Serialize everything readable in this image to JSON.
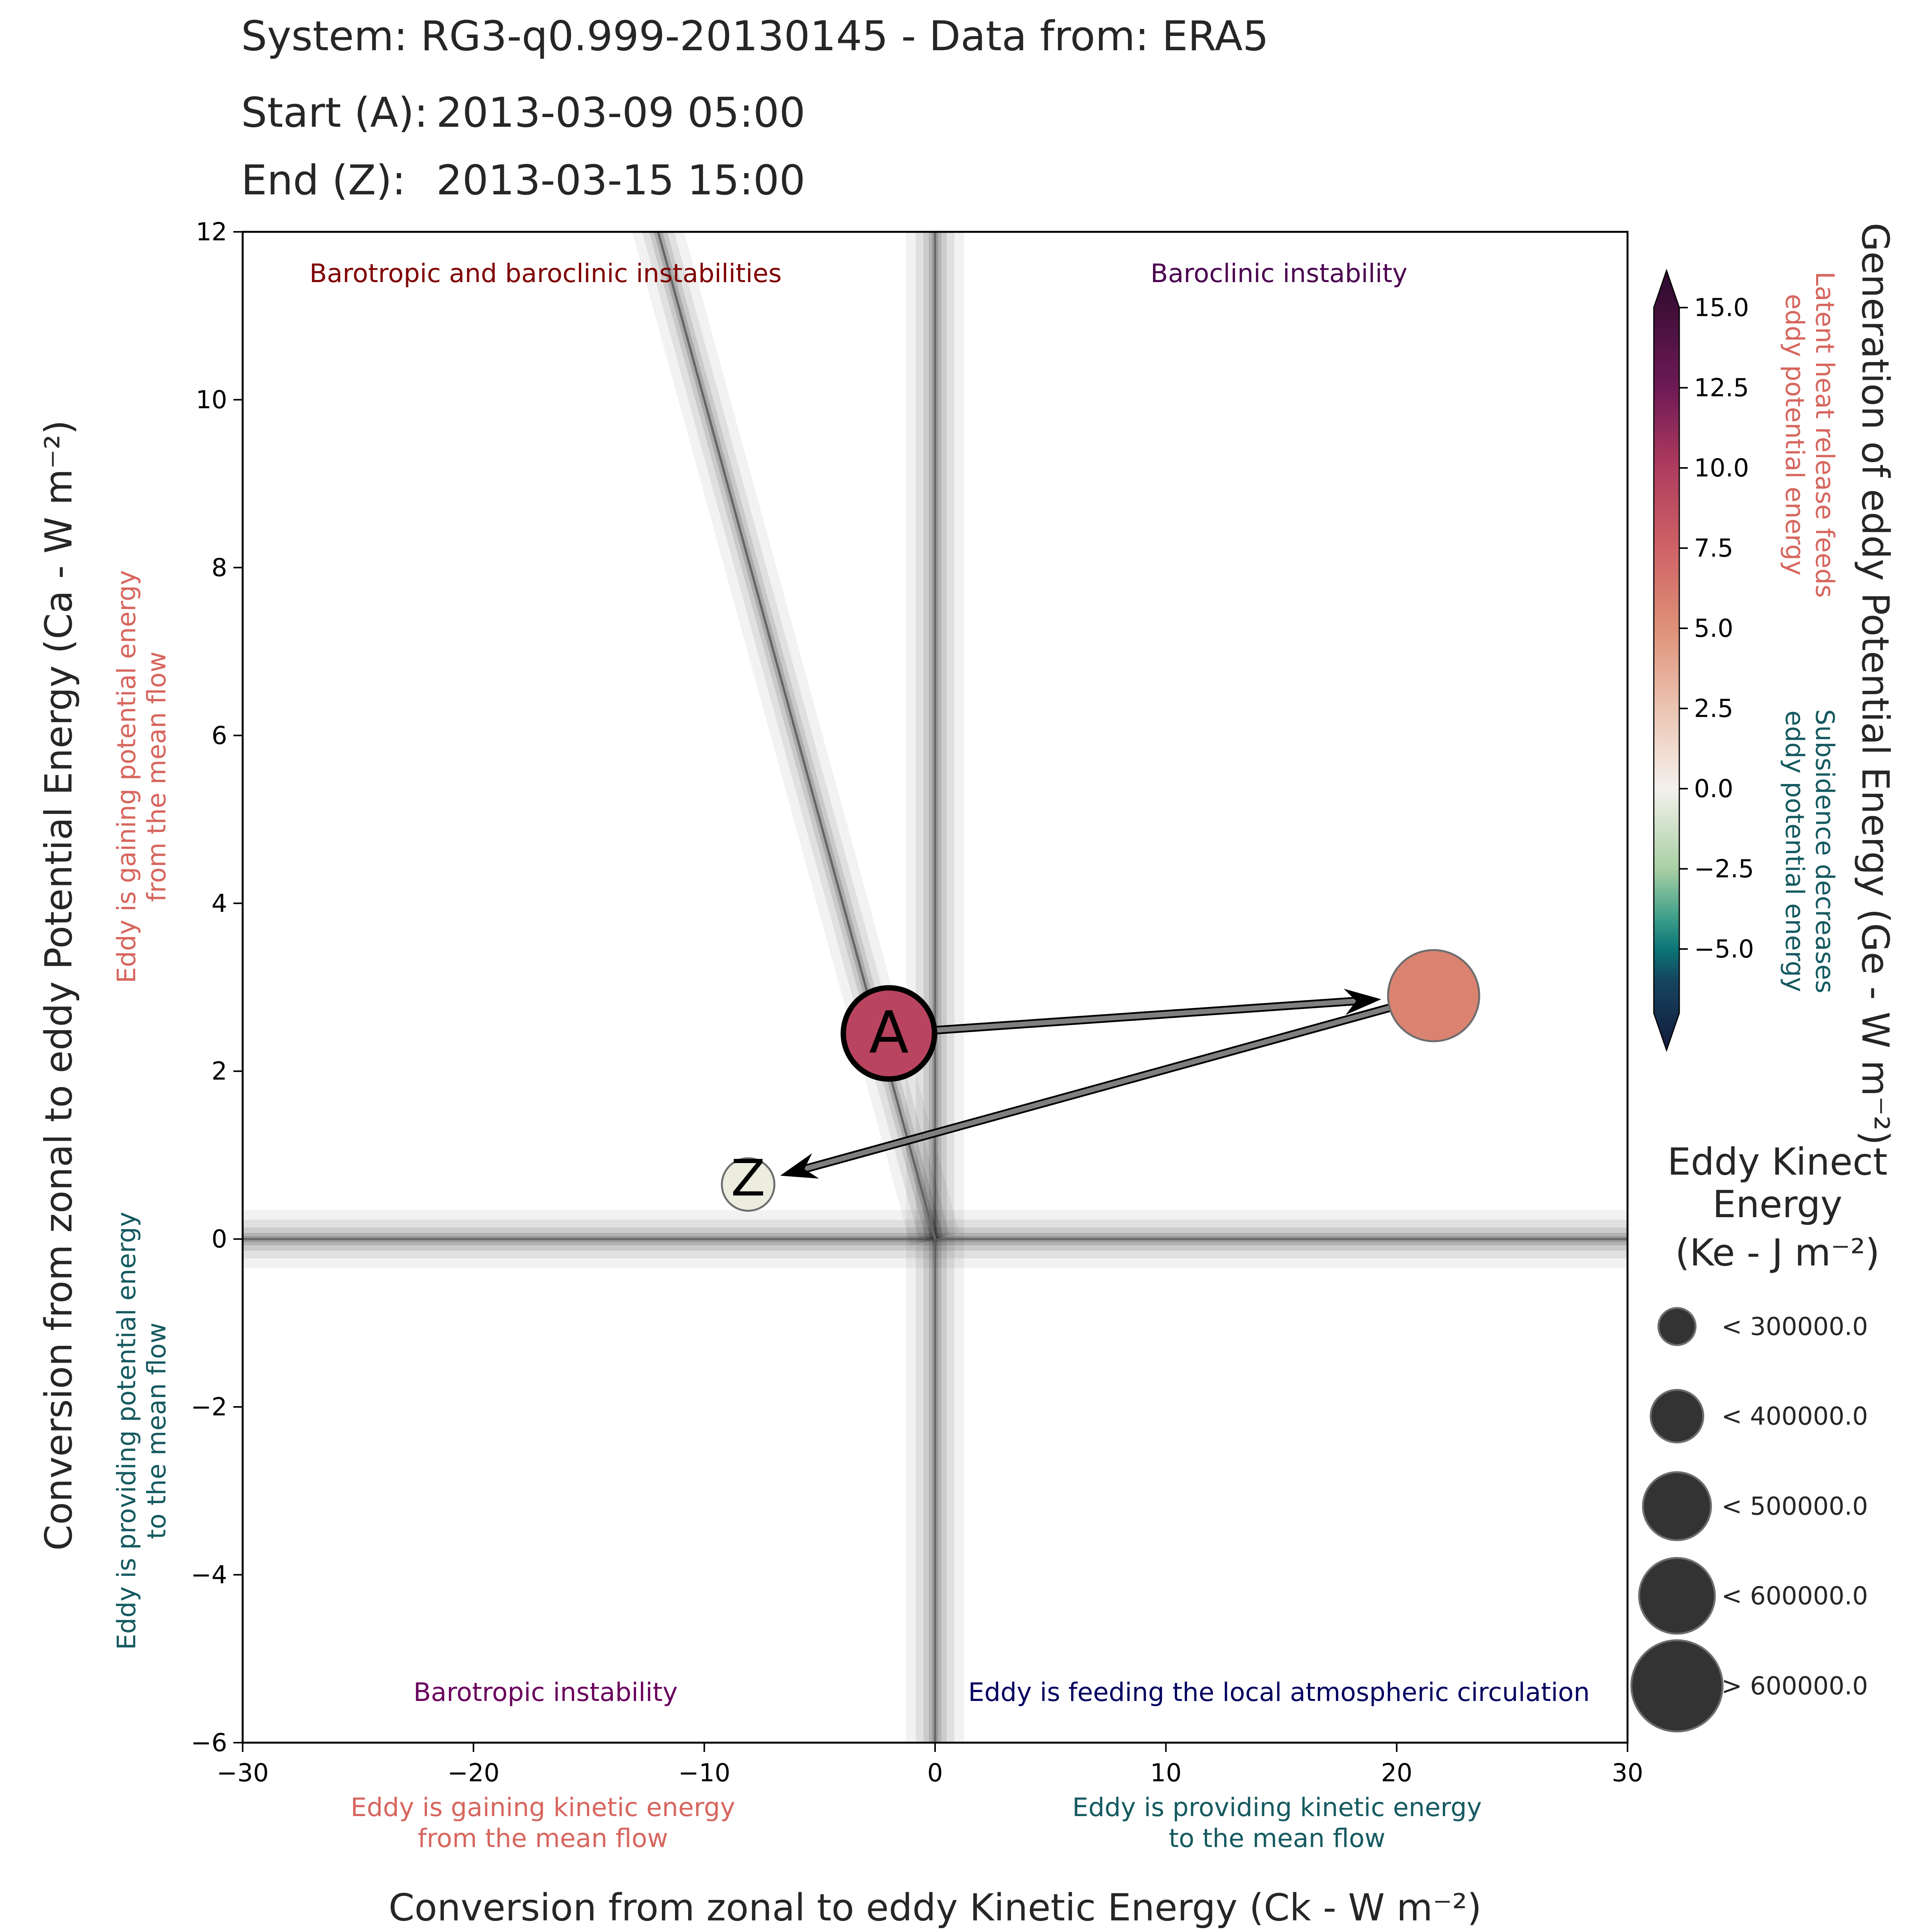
{
  "header": {
    "system_line": "System: RG3-q0.999-20130145 - Data from: ERA5",
    "start_label": "Start (A):",
    "start_value": "2013-03-09 05:00",
    "end_label": "End (Z):",
    "end_value": "2013-03-15 15:00"
  },
  "chart_data": {
    "type": "scatter",
    "xlabel": "Conversion from zonal to eddy Kinetic Energy (Ck -  W m⁻²)",
    "ylabel": "Conversion from zonal to eddy Potential Energy (Ca -  W m⁻²)",
    "xlim": [
      -30,
      30
    ],
    "ylim": [
      -6,
      12
    ],
    "xticks": [
      -30,
      -20,
      -10,
      0,
      10,
      20,
      30
    ],
    "yticks": [
      -6,
      -4,
      -2,
      0,
      2,
      4,
      6,
      8,
      10,
      12
    ],
    "xtick_labels": [
      "−30",
      "−20",
      "−10",
      "0",
      "10",
      "20",
      "30"
    ],
    "ytick_labels": [
      "−6",
      "−4",
      "−2",
      "0",
      "2",
      "4",
      "6",
      "8",
      "10",
      "12"
    ],
    "grid": false,
    "points": [
      {
        "label": "A",
        "x": -2.0,
        "y": 2.45,
        "ge": 10.0,
        "color": "#b9445f",
        "size_class": 4,
        "bold_edge": true
      },
      {
        "label": "",
        "x": 21.6,
        "y": 2.9,
        "ge": 5.5,
        "color": "#d98370",
        "size_class": 4,
        "bold_edge": false
      },
      {
        "label": "Z",
        "x": -8.1,
        "y": 0.65,
        "ge": -0.5,
        "color": "#ececdf",
        "size_class": 1,
        "bold_edge": false
      }
    ],
    "trend_line": {
      "x": [
        -12.5,
        0.0
      ],
      "y": [
        12.5,
        0.0
      ]
    },
    "quadrant_labels": [
      {
        "text": "Barotropic and baroclinic instabilities",
        "color": "#800000",
        "position": "top-left"
      },
      {
        "text": "Baroclinic instability",
        "color": "#4b0050",
        "position": "top-right"
      },
      {
        "text": "Barotropic instability",
        "color": "#6a005d",
        "position": "bottom-left"
      },
      {
        "text": "Eddy is feeding the local atmospheric circulation",
        "color": "#000060",
        "position": "bottom-right"
      }
    ],
    "annotations": {
      "x_negative": [
        "Eddy is gaining kinetic energy",
        "from the mean flow"
      ],
      "x_positive": [
        "Eddy is providing kinetic energy",
        "to the mean flow"
      ],
      "y_positive": [
        "Eddy is gaining potential energy",
        "from the mean flow"
      ],
      "y_negative": [
        "Eddy is providing potential energy",
        "to the mean flow"
      ],
      "cbar_positive": [
        "Latent heat release feeds",
        "eddy potential energy"
      ],
      "cbar_negative": [
        "Subsidence decreases",
        "eddy potential energy"
      ],
      "color_positive": "#d7665e",
      "color_negative": "#155a60"
    },
    "colorbar": {
      "label": "Generation of eddy Potential Energy (Ge -  W m⁻²)",
      "vmin": -7.0,
      "vmax": 15.0,
      "ticks": [
        15.0,
        12.5,
        10.0,
        7.5,
        5.0,
        2.5,
        0.0,
        -2.5,
        -5.0
      ],
      "tick_labels": [
        "15.0",
        "12.5",
        "10.0",
        "7.5",
        "5.0",
        "2.5",
        "0.0",
        "−2.5",
        "−5.0"
      ],
      "stops": [
        {
          "v": 15.0,
          "c": "#2a0a2c"
        },
        {
          "v": 12.5,
          "c": "#6e1a55"
        },
        {
          "v": 10.0,
          "c": "#b03c5e"
        },
        {
          "v": 7.5,
          "c": "#cf6266"
        },
        {
          "v": 5.0,
          "c": "#de9178"
        },
        {
          "v": 2.5,
          "c": "#ecc4b2"
        },
        {
          "v": 0.0,
          "c": "#f4f1ec"
        },
        {
          "v": -2.5,
          "c": "#a9cfa4"
        },
        {
          "v": -4.0,
          "c": "#3fa08a"
        },
        {
          "v": -5.0,
          "c": "#0b7576"
        },
        {
          "v": -6.0,
          "c": "#15445f"
        },
        {
          "v": -7.0,
          "c": "#141a3c"
        }
      ]
    },
    "size_legend": {
      "title": [
        "Eddy Kinect",
        "Energy",
        "(Ke -  J m⁻²)"
      ],
      "entries": [
        "< 300000.0",
        "< 400000.0",
        "< 500000.0",
        "< 600000.0",
        "> 600000.0"
      ]
    }
  }
}
